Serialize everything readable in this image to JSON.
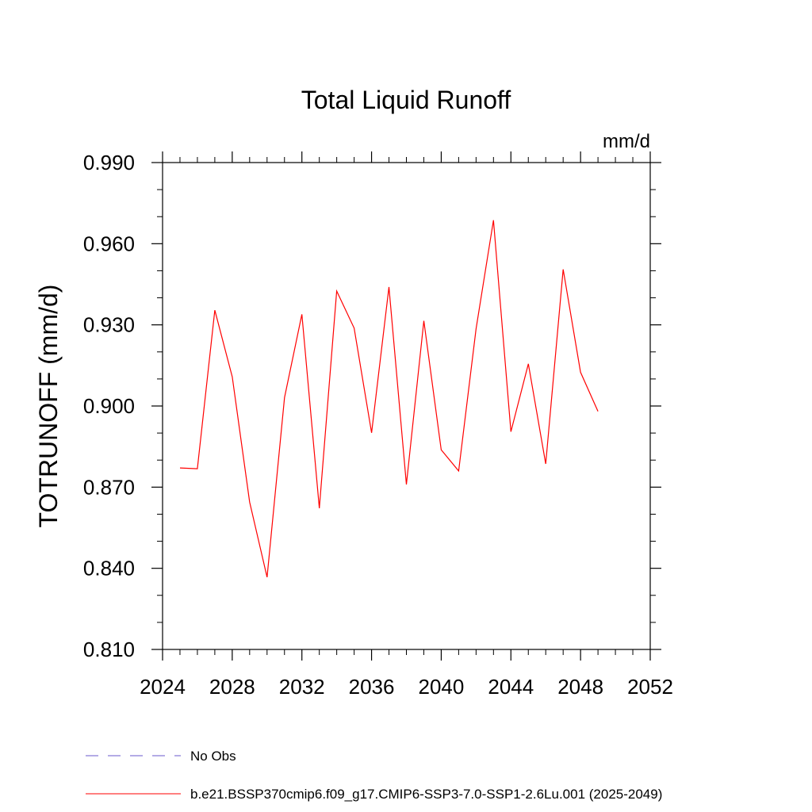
{
  "chart_data": {
    "type": "line",
    "title": "Total Liquid Runoff",
    "units": "mm/d",
    "ylabel": "TOTRUNOFF  (mm/d)",
    "xlabel": "",
    "xlim": [
      2024,
      2052
    ],
    "ylim": [
      0.81,
      0.99
    ],
    "x_ticks": [
      2024,
      2028,
      2032,
      2036,
      2040,
      2044,
      2048,
      2052
    ],
    "x_tick_labels": [
      "2024",
      "2028",
      "2032",
      "2036",
      "2040",
      "2044",
      "2048",
      "2052"
    ],
    "y_ticks": [
      0.81,
      0.84,
      0.87,
      0.9,
      0.93,
      0.96,
      0.99
    ],
    "y_tick_labels": [
      "0.810",
      "0.840",
      "0.870",
      "0.900",
      "0.930",
      "0.960",
      "0.990"
    ],
    "grid": false,
    "legend_placement": "bottom",
    "series": [
      {
        "name": "b.e21.BSSP370cmip6.f09_g17.CMIP6-SSP3-7.0-SSP1-2.6Lu.001 (2025-2049)",
        "color": "#ff0000",
        "x": [
          2025,
          2026,
          2027,
          2028,
          2029,
          2030,
          2031,
          2032,
          2033,
          2034,
          2035,
          2036,
          2037,
          2038,
          2039,
          2040,
          2041,
          2042,
          2043,
          2044,
          2045,
          2046,
          2047,
          2048,
          2049
        ],
        "y": [
          0.8771,
          0.8768,
          0.9354,
          0.9108,
          0.8645,
          0.8367,
          0.9031,
          0.9339,
          0.8622,
          0.9425,
          0.9288,
          0.8901,
          0.944,
          0.871,
          0.9315,
          0.8838,
          0.876,
          0.9286,
          0.9687,
          0.8905,
          0.9156,
          0.8786,
          0.9505,
          0.9125,
          0.898
        ]
      }
    ],
    "legend": [
      {
        "label": "No Obs",
        "color": "#6a5acd",
        "style": "dashed"
      },
      {
        "label": "b.e21.BSSP370cmip6.f09_g17.CMIP6-SSP3-7.0-SSP1-2.6Lu.001 (2025-2049)",
        "color": "#ff0000",
        "style": "solid"
      }
    ]
  }
}
